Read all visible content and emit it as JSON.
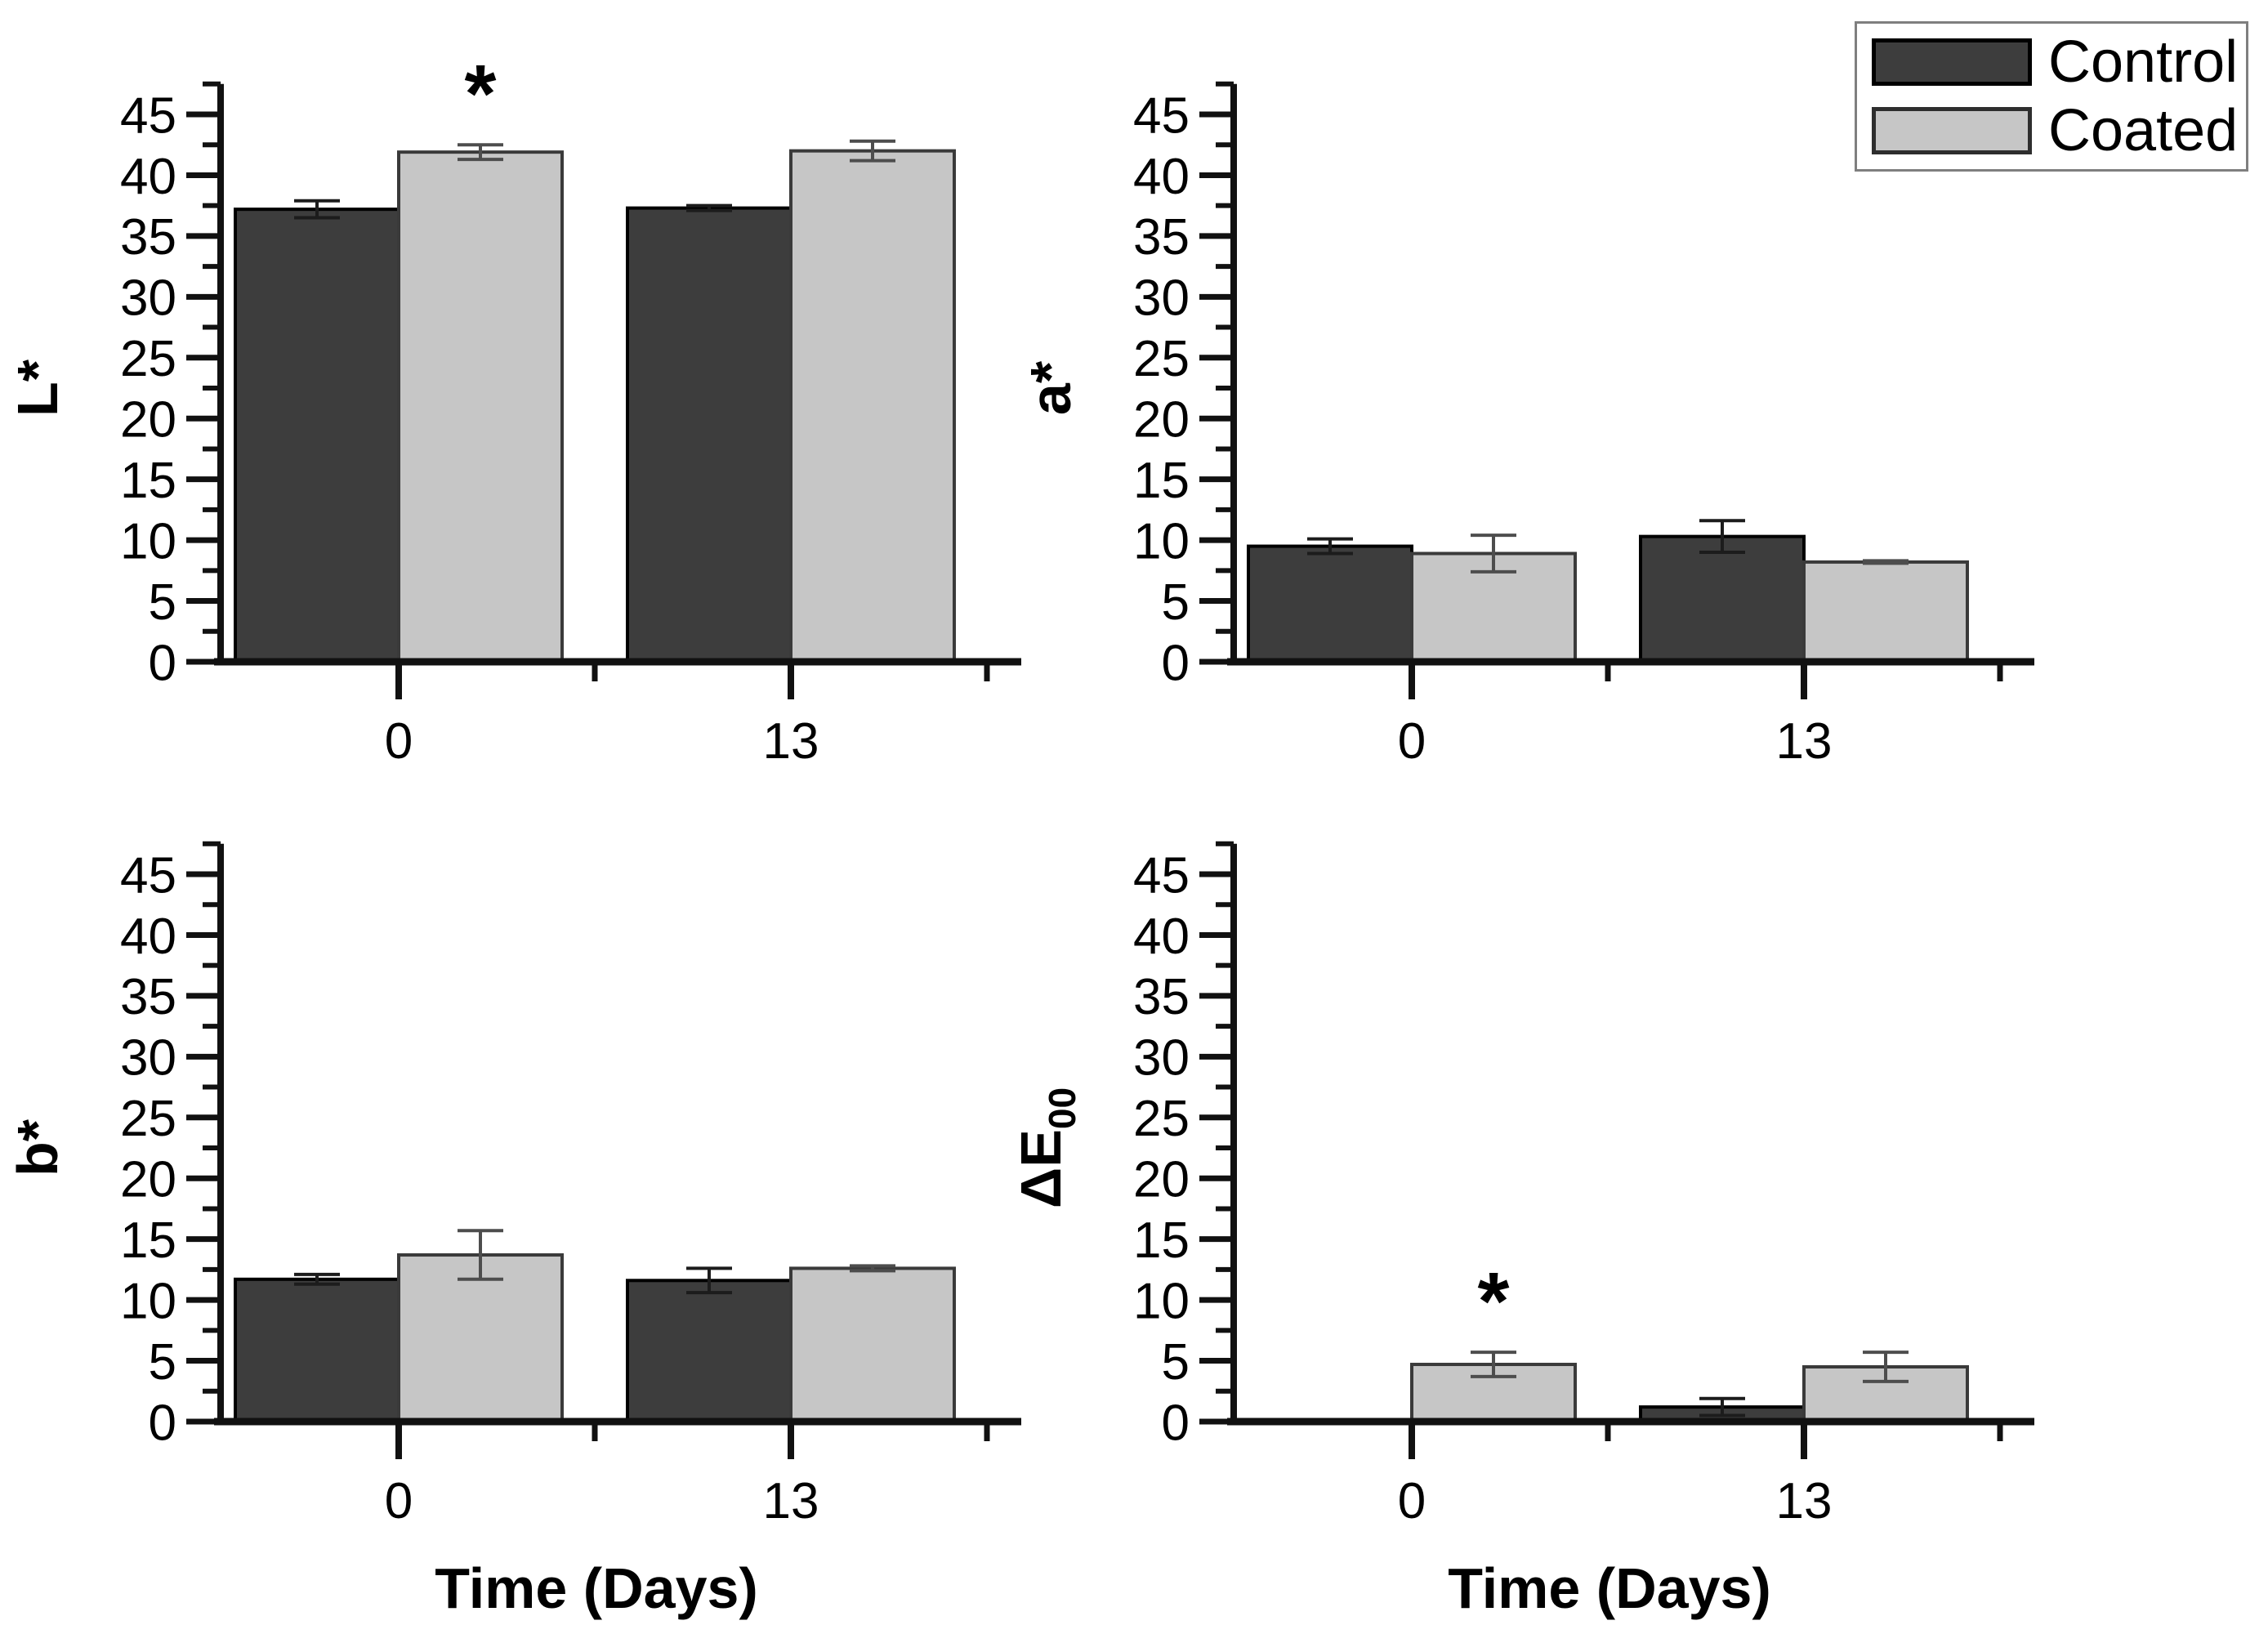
{
  "figure": {
    "background": "#ffffff",
    "text_color": "#000000",
    "axis_color": "#111111",
    "legend": {
      "position": "top-right",
      "items": [
        {
          "label": "Control",
          "color": "#3d3d3d",
          "border": "#000000"
        },
        {
          "label": "Coated",
          "color": "#c6c6c6",
          "border": "#2e2e2e"
        }
      ]
    }
  },
  "chart_data": [
    {
      "id": "L-star",
      "type": "bar",
      "title": "",
      "ylabel": "L*",
      "ylabel_sub": "",
      "xlabel": "",
      "categories": [
        "0",
        "13"
      ],
      "yticks": [
        0,
        5,
        10,
        15,
        20,
        25,
        30,
        35,
        40,
        45
      ],
      "ylim": [
        0,
        45
      ],
      "ytick_major": 5,
      "ytick_minor": 2.5,
      "grid": false,
      "series": [
        {
          "name": "Control",
          "color": "#3d3d3d",
          "edge": "#000000",
          "values": [
            37.2,
            37.3
          ],
          "errors": [
            0.7,
            0.2
          ]
        },
        {
          "name": "Coated",
          "color": "#c6c6c6",
          "edge": "#3a3a3a",
          "values": [
            41.9,
            42.0
          ],
          "errors": [
            0.6,
            0.8
          ]
        }
      ],
      "annotations": [
        {
          "text": "*",
          "category_index": 0,
          "series_index": 1
        }
      ]
    },
    {
      "id": "a-star",
      "type": "bar",
      "title": "",
      "ylabel": "a*",
      "ylabel_sub": "",
      "xlabel": "",
      "categories": [
        "0",
        "13"
      ],
      "yticks": [
        0,
        5,
        10,
        15,
        20,
        25,
        30,
        35,
        40,
        45
      ],
      "ylim": [
        0,
        45
      ],
      "ytick_major": 5,
      "ytick_minor": 2.5,
      "grid": false,
      "series": [
        {
          "name": "Control",
          "color": "#3d3d3d",
          "edge": "#000000",
          "values": [
            9.5,
            10.3
          ],
          "errors": [
            0.6,
            1.3
          ]
        },
        {
          "name": "Coated",
          "color": "#c6c6c6",
          "edge": "#3a3a3a",
          "values": [
            8.9,
            8.2
          ],
          "errors": [
            1.5,
            0.1
          ]
        }
      ],
      "annotations": []
    },
    {
      "id": "b-star",
      "type": "bar",
      "title": "",
      "ylabel": "b*",
      "ylabel_sub": "",
      "xlabel": "Time (Days)",
      "categories": [
        "0",
        "13"
      ],
      "yticks": [
        0,
        5,
        10,
        15,
        20,
        25,
        30,
        35,
        40,
        45
      ],
      "ylim": [
        0,
        45
      ],
      "ytick_major": 5,
      "ytick_minor": 2.5,
      "grid": false,
      "series": [
        {
          "name": "Control",
          "color": "#3d3d3d",
          "edge": "#000000",
          "values": [
            11.7,
            11.6
          ],
          "errors": [
            0.4,
            1.0
          ]
        },
        {
          "name": "Coated",
          "color": "#c6c6c6",
          "edge": "#3a3a3a",
          "values": [
            13.7,
            12.6
          ],
          "errors": [
            2.0,
            0.2
          ]
        }
      ],
      "annotations": []
    },
    {
      "id": "delta-E00",
      "type": "bar",
      "title": "",
      "ylabel": "ΔE",
      "ylabel_sub": "00",
      "xlabel": "Time (Days)",
      "categories": [
        "0",
        "13"
      ],
      "yticks": [
        0,
        5,
        10,
        15,
        20,
        25,
        30,
        35,
        40,
        45
      ],
      "ylim": [
        0,
        45
      ],
      "ytick_major": 5,
      "ytick_minor": 2.5,
      "grid": false,
      "series": [
        {
          "name": "Control",
          "color": "#3d3d3d",
          "edge": "#000000",
          "values": [
            0,
            1.2
          ],
          "errors": [
            0,
            0.7
          ]
        },
        {
          "name": "Coated",
          "color": "#c6c6c6",
          "edge": "#3a3a3a",
          "values": [
            4.7,
            4.5
          ],
          "errors": [
            1.0,
            1.2
          ]
        }
      ],
      "annotations": [
        {
          "text": "*",
          "category_index": 0,
          "series_index": 1
        }
      ]
    }
  ]
}
